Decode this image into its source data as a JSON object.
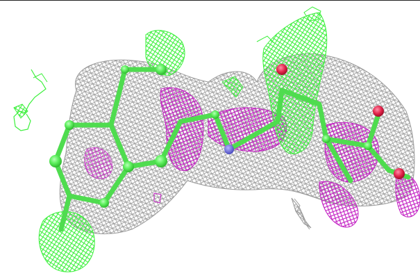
{
  "figure": {
    "colors": {
      "background": "#ffffff",
      "top_rule": "#222222",
      "grey_mesh": "#9a9a9a",
      "green_mesh": "#3cf03c",
      "magenta_mesh": "#c21cc2",
      "carbon": "#5ef05e",
      "carbon_shadow": "#2fb82f",
      "oxygen": "#e2224a",
      "nitrogen": "#5a5ad8"
    },
    "legend": []
  }
}
